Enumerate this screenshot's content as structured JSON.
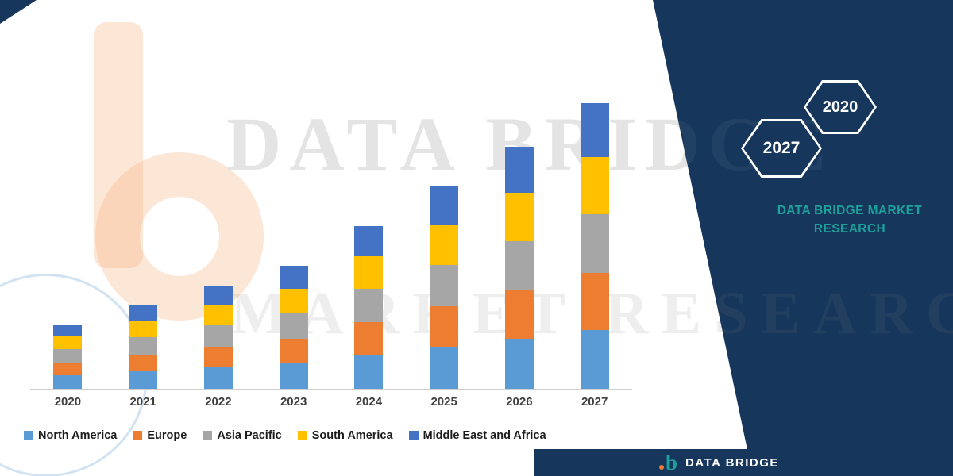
{
  "chart_data": {
    "type": "bar",
    "stacked": true,
    "title": "",
    "categories": [
      "2020",
      "2021",
      "2022",
      "2023",
      "2024",
      "2025",
      "2026",
      "2027"
    ],
    "series": [
      {
        "name": "North America",
        "color": "#5B9BD5",
        "values": [
          1.7,
          2.2,
          2.7,
          3.2,
          4.3,
          5.3,
          6.3,
          7.4
        ]
      },
      {
        "name": "Europe",
        "color": "#ED7D31",
        "values": [
          1.6,
          2.1,
          2.6,
          3.1,
          4.1,
          5.1,
          6.1,
          7.2
        ]
      },
      {
        "name": "Asia Pacific",
        "color": "#A6A6A6",
        "values": [
          1.7,
          2.2,
          2.7,
          3.2,
          4.2,
          5.2,
          6.2,
          7.4
        ]
      },
      {
        "name": "South America",
        "color": "#FFC000",
        "values": [
          1.6,
          2.1,
          2.6,
          3.1,
          4.1,
          5.1,
          6.1,
          7.2
        ]
      },
      {
        "name": "Middle East and Africa",
        "color": "#4472C4",
        "values": [
          1.4,
          1.9,
          2.4,
          2.9,
          3.8,
          4.8,
          5.8,
          6.8
        ]
      }
    ],
    "ylim": [
      0,
      37
    ],
    "gridlines": false,
    "legend_position": "bottom"
  },
  "watermarks": {
    "line1": "DATA BRIDGE",
    "line2": "MARKET RESEARCH"
  },
  "side_panel": {
    "hexagons": [
      {
        "year": "2027"
      },
      {
        "year": "2020"
      }
    ],
    "title_line1": "DATA BRIDGE MARKET",
    "title_line2": "RESEARCH"
  },
  "footer": {
    "brand": "DATA BRIDGE",
    "logo_glyph": "b"
  },
  "colors": {
    "navy": "#16365C",
    "teal": "#1FA19B",
    "watermark_peach": "#F6B280"
  }
}
